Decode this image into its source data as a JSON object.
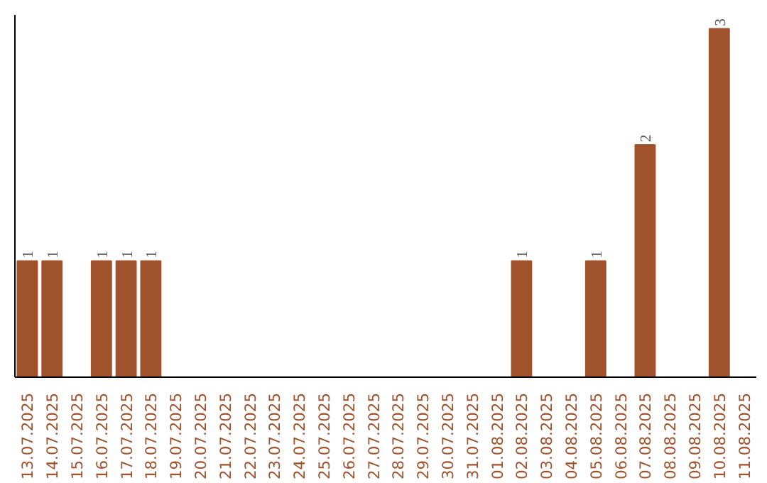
{
  "chart_data": {
    "type": "bar",
    "categories": [
      "13.07.2025",
      "14.07.2025",
      "15.07.2025",
      "16.07.2025",
      "17.07.2025",
      "18.07.2025",
      "19.07.2025",
      "20.07.2025",
      "21.07.2025",
      "22.07.2025",
      "23.07.2025",
      "24.07.2025",
      "25.07.2025",
      "26.07.2025",
      "27.07.2025",
      "28.07.2025",
      "29.07.2025",
      "30.07.2025",
      "31.07.2025",
      "01.08.2025",
      "02.08.2025",
      "03.08.2025",
      "04.08.2025",
      "05.08.2025",
      "06.08.2025",
      "07.08.2025",
      "08.08.2025",
      "09.08.2025",
      "10.08.2025",
      "11.08.2025"
    ],
    "values": [
      1,
      1,
      0,
      1,
      1,
      1,
      0,
      0,
      0,
      0,
      0,
      0,
      0,
      0,
      0,
      0,
      0,
      0,
      0,
      0,
      1,
      0,
      0,
      1,
      0,
      2,
      0,
      0,
      3,
      0
    ],
    "value_labels": [
      "1",
      "1",
      null,
      "1",
      "1",
      "1",
      null,
      null,
      null,
      null,
      null,
      null,
      null,
      null,
      null,
      null,
      null,
      null,
      null,
      null,
      "1",
      null,
      null,
      "1",
      null,
      "2",
      null,
      null,
      "3",
      null
    ],
    "color": "#a0522d",
    "grid": false,
    "tick_labels": "x"
  }
}
